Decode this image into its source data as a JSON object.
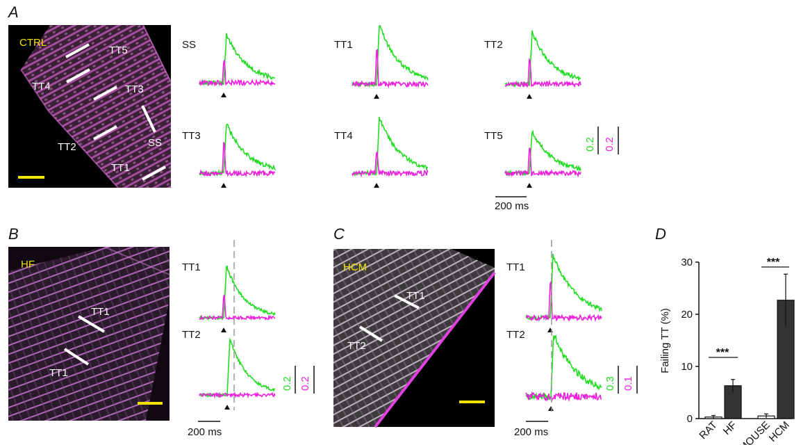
{
  "panels": {
    "A": {
      "letter": "A",
      "condition": "CTRL",
      "image_labels": [
        "TT5",
        "TT4",
        "TT3",
        "TT2",
        "SS",
        "TT1"
      ],
      "traces": [
        "SS",
        "TT1",
        "TT2",
        "TT3",
        "TT4",
        "TT5"
      ],
      "scale_green": "0.2",
      "scale_magenta": "0.2",
      "time_scale": "200 ms"
    },
    "B": {
      "letter": "B",
      "condition": "HF",
      "image_labels": [
        "TT1",
        "TT1"
      ],
      "traces": [
        "TT1",
        "TT2"
      ],
      "scale_green": "0.2",
      "scale_magenta": "0.2",
      "time_scale": "200 ms"
    },
    "C": {
      "letter": "C",
      "condition": "HCM",
      "image_labels": [
        "TT1",
        "TT2"
      ],
      "traces": [
        "TT1",
        "TT2"
      ],
      "scale_green": "0.3",
      "scale_magenta": "0.1",
      "time_scale": "200 ms"
    },
    "D": {
      "letter": "D",
      "significance": [
        "***",
        "***"
      ]
    }
  },
  "colors": {
    "green": "#22dd22",
    "magenta": "#ee22dd",
    "scale_bar": "#f2e400"
  },
  "chart_data": {
    "type": "bar",
    "categories": [
      "RAT",
      "HF",
      "MOUSE",
      "HCM"
    ],
    "values": [
      0.3,
      6.3,
      0.5,
      22.7
    ],
    "errors": [
      0.3,
      1.2,
      0.4,
      5.0
    ],
    "bar_fills": [
      "white",
      "dark",
      "white",
      "dark"
    ],
    "ylabel": "Failing TT (%)",
    "xlabel": "",
    "ylim": [
      0,
      30
    ],
    "yticks": [
      0,
      10,
      20,
      30
    ],
    "grid": false
  }
}
